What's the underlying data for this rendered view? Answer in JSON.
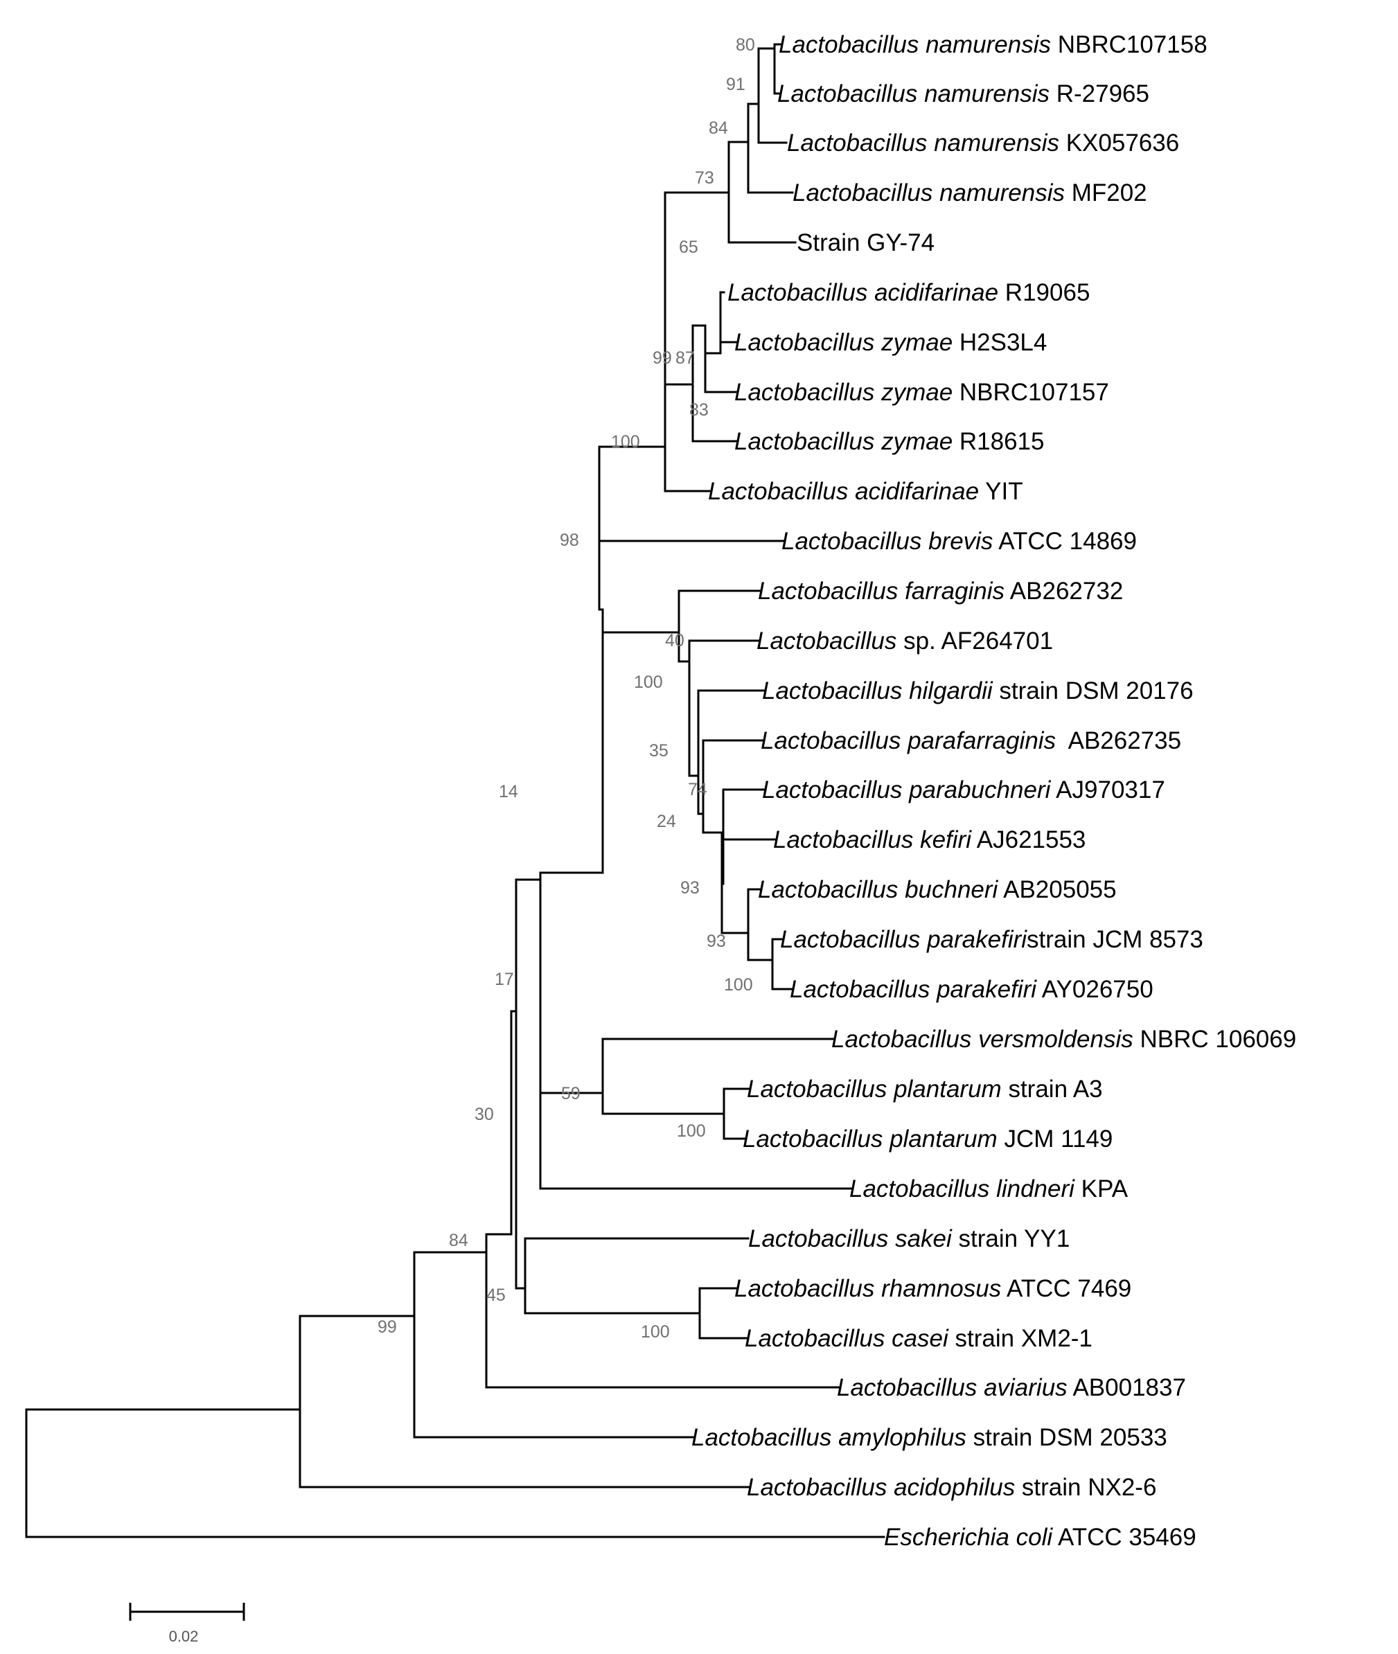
{
  "figure": {
    "scale_bar_label": "0.02",
    "leaves": [
      {
        "id": "L01",
        "italic": "Lactobacillus namurensis",
        "rest": " NBRC107158"
      },
      {
        "id": "L02",
        "italic": "Lactobacillus namurensis",
        "rest": " R-27965"
      },
      {
        "id": "L03",
        "italic": "Lactobacillus namurensis",
        "rest": " KX057636"
      },
      {
        "id": "L04",
        "italic": "Lactobacillus namurensis",
        "rest": " MF202"
      },
      {
        "id": "L05",
        "italic": "",
        "rest": "Strain GY-74"
      },
      {
        "id": "L06",
        "italic": "Lactobacillus acidifarinae",
        "rest": " R19065"
      },
      {
        "id": "L07",
        "italic": "Lactobacillus zymae",
        "rest": " H2S3L4"
      },
      {
        "id": "L08",
        "italic": "Lactobacillus zymae",
        "rest": " NBRC107157"
      },
      {
        "id": "L09",
        "italic": "Lactobacillus zymae",
        "rest": " R18615"
      },
      {
        "id": "L10",
        "italic": "Lactobacillus acidifarinae",
        "rest": " YIT"
      },
      {
        "id": "L11",
        "italic": "Lactobacillus brevis",
        "rest": " ATCC 14869"
      },
      {
        "id": "L12",
        "italic": "Lactobacillus farraginis",
        "rest": " AB262732"
      },
      {
        "id": "L13",
        "italic": "Lactobacillus",
        "rest": " sp. AF264701"
      },
      {
        "id": "L14",
        "italic": "Lactobacillus hilgardii",
        "rest": " strain DSM 20176"
      },
      {
        "id": "L15",
        "italic": "Lactobacillus parafarraginis",
        "rest": "  AB262735"
      },
      {
        "id": "L16",
        "italic": "Lactobacillus parabuchneri",
        "rest": " AJ970317"
      },
      {
        "id": "L17",
        "italic": "Lactobacillus kefiri",
        "rest": " AJ621553"
      },
      {
        "id": "L18",
        "italic": "Lactobacillus buchneri",
        "rest": " AB205055"
      },
      {
        "id": "L19",
        "italic": "Lactobacillus parakefiri",
        "rest": "strain JCM 8573"
      },
      {
        "id": "L20",
        "italic": "Lactobacillus parakefiri",
        "rest": " AY026750"
      },
      {
        "id": "L21",
        "italic": "Lactobacillus versmoldensis",
        "rest": " NBRC 106069"
      },
      {
        "id": "L22",
        "italic": "Lactobacillus plantarum",
        "rest": " strain A3"
      },
      {
        "id": "L23",
        "italic": "Lactobacillus plantarum",
        "rest": " JCM 1149"
      },
      {
        "id": "L24",
        "italic": "Lactobacillus lindneri",
        "rest": " KPA"
      },
      {
        "id": "L25",
        "italic": "Lactobacillus sakei",
        "rest": " strain YY1"
      },
      {
        "id": "L26",
        "italic": "Lactobacillus rhamnosus",
        "rest": " ATCC 7469"
      },
      {
        "id": "L27",
        "italic": "Lactobacillus casei",
        "rest": " strain XM2-1"
      },
      {
        "id": "L28",
        "italic": "Lactobacillus aviarius",
        "rest": " AB001837"
      },
      {
        "id": "L29",
        "italic": "Lactobacillus amylophilus",
        "rest": " strain DSM 20533"
      },
      {
        "id": "L30",
        "italic": "Lactobacillus acidophilus",
        "rest": " strain NX2-6"
      },
      {
        "id": "L31",
        "italic": "Escherichia coli",
        "rest": " ATCC 35469"
      }
    ],
    "bootstrap_values": [
      "80",
      "91",
      "84",
      "73",
      "65",
      "99",
      "87",
      "83",
      "100",
      "98",
      "40",
      "100",
      "35",
      "74",
      "24",
      "93",
      "93",
      "100",
      "14",
      "17",
      "59",
      "100",
      "30",
      "84",
      "45",
      "100",
      "99"
    ]
  }
}
